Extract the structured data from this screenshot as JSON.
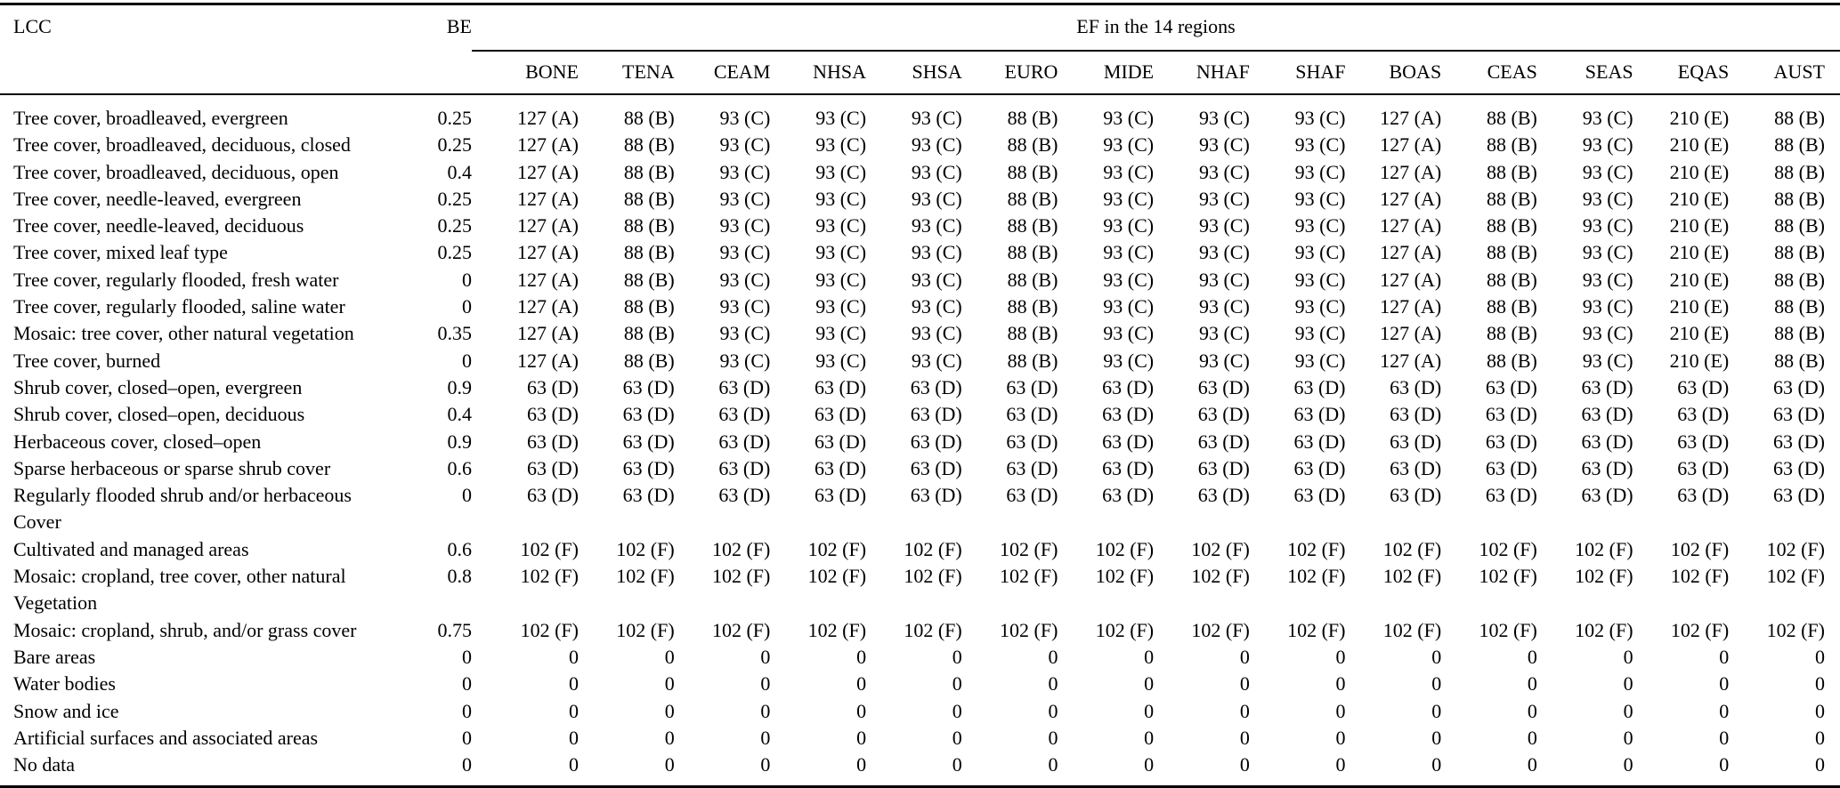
{
  "table": {
    "header": {
      "lcc": "LCC",
      "be": "BE",
      "ef_group": "EF in the 14 regions",
      "regions": [
        "BONE",
        "TENA",
        "CEAM",
        "NHSA",
        "SHSA",
        "EURO",
        "MIDE",
        "NHAF",
        "SHAF",
        "BOAS",
        "CEAS",
        "SEAS",
        "EQAS",
        "AUST"
      ]
    },
    "rows": [
      {
        "lcc": "Tree cover, broadleaved, evergreen",
        "be": "0.25",
        "ef": [
          "127 (A)",
          "88 (B)",
          "93 (C)",
          "93 (C)",
          "93 (C)",
          "88 (B)",
          "93 (C)",
          "93 (C)",
          "93 (C)",
          "127 (A)",
          "88 (B)",
          "93 (C)",
          "210 (E)",
          "88 (B)"
        ]
      },
      {
        "lcc": "Tree cover, broadleaved, deciduous, closed",
        "be": "0.25",
        "ef": [
          "127 (A)",
          "88 (B)",
          "93 (C)",
          "93 (C)",
          "93 (C)",
          "88 (B)",
          "93 (C)",
          "93 (C)",
          "93 (C)",
          "127 (A)",
          "88 (B)",
          "93 (C)",
          "210 (E)",
          "88 (B)"
        ]
      },
      {
        "lcc": "Tree cover, broadleaved, deciduous, open",
        "be": "0.4",
        "ef": [
          "127 (A)",
          "88 (B)",
          "93 (C)",
          "93 (C)",
          "93 (C)",
          "88 (B)",
          "93 (C)",
          "93 (C)",
          "93 (C)",
          "127 (A)",
          "88 (B)",
          "93 (C)",
          "210 (E)",
          "88 (B)"
        ]
      },
      {
        "lcc": "Tree cover, needle-leaved, evergreen",
        "be": "0.25",
        "ef": [
          "127 (A)",
          "88 (B)",
          "93 (C)",
          "93 (C)",
          "93 (C)",
          "88 (B)",
          "93 (C)",
          "93 (C)",
          "93 (C)",
          "127 (A)",
          "88 (B)",
          "93 (C)",
          "210 (E)",
          "88 (B)"
        ]
      },
      {
        "lcc": "Tree cover, needle-leaved, deciduous",
        "be": "0.25",
        "ef": [
          "127 (A)",
          "88 (B)",
          "93 (C)",
          "93 (C)",
          "93 (C)",
          "88 (B)",
          "93 (C)",
          "93 (C)",
          "93 (C)",
          "127 (A)",
          "88 (B)",
          "93 (C)",
          "210 (E)",
          "88 (B)"
        ]
      },
      {
        "lcc": "Tree cover, mixed leaf type",
        "be": "0.25",
        "ef": [
          "127 (A)",
          "88 (B)",
          "93 (C)",
          "93 (C)",
          "93 (C)",
          "88 (B)",
          "93 (C)",
          "93 (C)",
          "93 (C)",
          "127 (A)",
          "88 (B)",
          "93 (C)",
          "210 (E)",
          "88 (B)"
        ]
      },
      {
        "lcc": "Tree cover, regularly flooded, fresh water",
        "be": "0",
        "ef": [
          "127 (A)",
          "88 (B)",
          "93 (C)",
          "93 (C)",
          "93 (C)",
          "88 (B)",
          "93 (C)",
          "93 (C)",
          "93 (C)",
          "127 (A)",
          "88 (B)",
          "93 (C)",
          "210 (E)",
          "88 (B)"
        ]
      },
      {
        "lcc": "Tree cover, regularly flooded, saline water",
        "be": "0",
        "ef": [
          "127 (A)",
          "88 (B)",
          "93 (C)",
          "93 (C)",
          "93 (C)",
          "88 (B)",
          "93 (C)",
          "93 (C)",
          "93 (C)",
          "127 (A)",
          "88 (B)",
          "93 (C)",
          "210 (E)",
          "88 (B)"
        ]
      },
      {
        "lcc": "Mosaic: tree cover, other natural vegetation",
        "be": "0.35",
        "ef": [
          "127 (A)",
          "88 (B)",
          "93 (C)",
          "93 (C)",
          "93 (C)",
          "88 (B)",
          "93 (C)",
          "93 (C)",
          "93 (C)",
          "127 (A)",
          "88 (B)",
          "93 (C)",
          "210 (E)",
          "88 (B)"
        ]
      },
      {
        "lcc": "Tree cover, burned",
        "be": "0",
        "ef": [
          "127 (A)",
          "88 (B)",
          "93 (C)",
          "93 (C)",
          "93 (C)",
          "88 (B)",
          "93 (C)",
          "93 (C)",
          "93 (C)",
          "127 (A)",
          "88 (B)",
          "93 (C)",
          "210 (E)",
          "88 (B)"
        ]
      },
      {
        "lcc": "Shrub cover, closed–open, evergreen",
        "be": "0.9",
        "ef": [
          "63 (D)",
          "63 (D)",
          "63 (D)",
          "63 (D)",
          "63 (D)",
          "63 (D)",
          "63 (D)",
          "63 (D)",
          "63 (D)",
          "63 (D)",
          "63 (D)",
          "63 (D)",
          "63 (D)",
          "63 (D)"
        ]
      },
      {
        "lcc": "Shrub cover, closed–open, deciduous",
        "be": "0.4",
        "ef": [
          "63 (D)",
          "63 (D)",
          "63 (D)",
          "63 (D)",
          "63 (D)",
          "63 (D)",
          "63 (D)",
          "63 (D)",
          "63 (D)",
          "63 (D)",
          "63 (D)",
          "63 (D)",
          "63 (D)",
          "63 (D)"
        ]
      },
      {
        "lcc": "Herbaceous cover, closed–open",
        "be": "0.9",
        "ef": [
          "63 (D)",
          "63 (D)",
          "63 (D)",
          "63 (D)",
          "63 (D)",
          "63 (D)",
          "63 (D)",
          "63 (D)",
          "63 (D)",
          "63 (D)",
          "63 (D)",
          "63 (D)",
          "63 (D)",
          "63 (D)"
        ]
      },
      {
        "lcc": "Sparse herbaceous or sparse shrub cover",
        "be": "0.6",
        "ef": [
          "63 (D)",
          "63 (D)",
          "63 (D)",
          "63 (D)",
          "63 (D)",
          "63 (D)",
          "63 (D)",
          "63 (D)",
          "63 (D)",
          "63 (D)",
          "63 (D)",
          "63 (D)",
          "63 (D)",
          "63 (D)"
        ]
      },
      {
        "lcc": "Regularly flooded shrub and/or herbaceous",
        "lcc2": "Cover",
        "be": "0",
        "ef": [
          "63 (D)",
          "63 (D)",
          "63 (D)",
          "63 (D)",
          "63 (D)",
          "63 (D)",
          "63 (D)",
          "63 (D)",
          "63 (D)",
          "63 (D)",
          "63 (D)",
          "63 (D)",
          "63 (D)",
          "63 (D)"
        ]
      },
      {
        "lcc": "Cultivated and managed areas",
        "be": "0.6",
        "ef": [
          "102 (F)",
          "102 (F)",
          "102 (F)",
          "102 (F)",
          "102 (F)",
          "102 (F)",
          "102 (F)",
          "102 (F)",
          "102 (F)",
          "102 (F)",
          "102 (F)",
          "102 (F)",
          "102 (F)",
          "102 (F)"
        ]
      },
      {
        "lcc": "Mosaic: cropland, tree cover, other natural",
        "lcc2": "Vegetation",
        "be": "0.8",
        "ef": [
          "102 (F)",
          "102 (F)",
          "102 (F)",
          "102 (F)",
          "102 (F)",
          "102 (F)",
          "102 (F)",
          "102 (F)",
          "102 (F)",
          "102 (F)",
          "102 (F)",
          "102 (F)",
          "102 (F)",
          "102 (F)"
        ]
      },
      {
        "lcc": "Mosaic: cropland, shrub, and/or grass cover",
        "be": "0.75",
        "ef": [
          "102 (F)",
          "102 (F)",
          "102 (F)",
          "102 (F)",
          "102 (F)",
          "102 (F)",
          "102 (F)",
          "102 (F)",
          "102 (F)",
          "102 (F)",
          "102 (F)",
          "102 (F)",
          "102 (F)",
          "102 (F)"
        ]
      },
      {
        "lcc": "Bare areas",
        "be": "0",
        "ef": [
          "0",
          "0",
          "0",
          "0",
          "0",
          "0",
          "0",
          "0",
          "0",
          "0",
          "0",
          "0",
          "0",
          "0"
        ]
      },
      {
        "lcc": "Water bodies",
        "be": "0",
        "ef": [
          "0",
          "0",
          "0",
          "0",
          "0",
          "0",
          "0",
          "0",
          "0",
          "0",
          "0",
          "0",
          "0",
          "0"
        ]
      },
      {
        "lcc": "Snow and ice",
        "be": "0",
        "ef": [
          "0",
          "0",
          "0",
          "0",
          "0",
          "0",
          "0",
          "0",
          "0",
          "0",
          "0",
          "0",
          "0",
          "0"
        ]
      },
      {
        "lcc": "Artificial surfaces and associated areas",
        "be": "0",
        "ef": [
          "0",
          "0",
          "0",
          "0",
          "0",
          "0",
          "0",
          "0",
          "0",
          "0",
          "0",
          "0",
          "0",
          "0"
        ]
      },
      {
        "lcc": "No data",
        "be": "0",
        "ef": [
          "0",
          "0",
          "0",
          "0",
          "0",
          "0",
          "0",
          "0",
          "0",
          "0",
          "0",
          "0",
          "0",
          "0"
        ]
      }
    ]
  }
}
